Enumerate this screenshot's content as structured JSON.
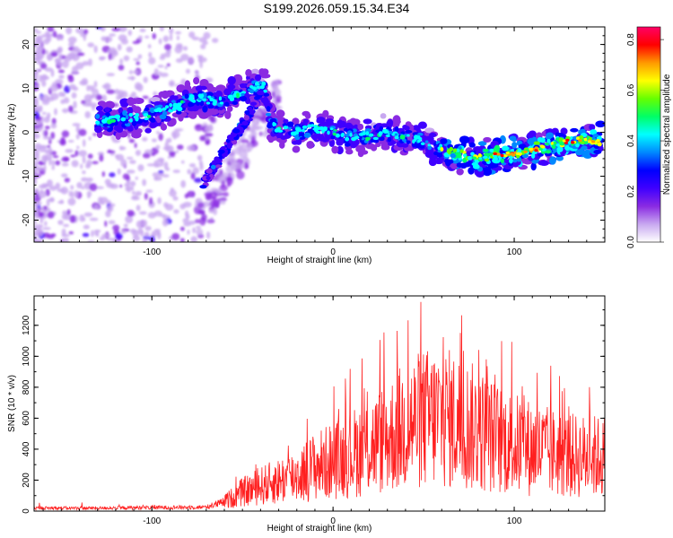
{
  "title": "S199.2026.059.15.34.E34",
  "chart_data": [
    {
      "type": "heatmap",
      "xlabel": "Height of straight line (km)",
      "ylabel": "Frequency (Hz)",
      "xlim": [
        -165,
        150
      ],
      "ylim": [
        -25,
        24
      ],
      "xticks": [
        "-100",
        "0",
        "100"
      ],
      "yticks": [
        "-20",
        "-10",
        "0",
        "10",
        "20"
      ],
      "colorbar": {
        "label": "Normalized spectral amplitude",
        "range": [
          0,
          0.85
        ],
        "ticks": [
          "0.0",
          "0.2",
          "0.4",
          "0.6",
          "0.8"
        ],
        "colors": [
          "#ffffff",
          "#c8a8f0",
          "#8a2be2",
          "#3f00ff",
          "#0000ff",
          "#0088ff",
          "#00ffff",
          "#00ff66",
          "#66ff00",
          "#ffff00",
          "#ff9900",
          "#ff0000",
          "#ff0066"
        ]
      },
      "ridge": {
        "x": [
          -130,
          -115,
          -100,
          -85,
          -75,
          -65,
          -55,
          -45,
          -38,
          -35,
          -30,
          -20,
          -10,
          0,
          10,
          20,
          30,
          40,
          50,
          60,
          70,
          80,
          90,
          100,
          110,
          120,
          130,
          140,
          148
        ],
        "y": [
          3,
          3,
          4,
          6,
          8,
          7,
          8,
          10,
          11,
          2,
          1,
          0,
          1,
          0,
          -1,
          -1,
          0,
          -1,
          -2,
          -4,
          -5,
          -6,
          -5,
          -5,
          -4,
          -3,
          -2,
          -2,
          -2
        ]
      }
    },
    {
      "type": "line",
      "xlabel": "Height of straight line (km)",
      "ylabel": "SNR (10 * v/v)",
      "xlim": [
        -165,
        150
      ],
      "ylim": [
        0,
        1390
      ],
      "xticks": [
        "-100",
        "0",
        "100"
      ],
      "yticks": [
        "0",
        "200",
        "400",
        "600",
        "800",
        "1000",
        "1200"
      ],
      "color": "#ff2020",
      "series": [
        {
          "envelope": {
            "x": [
              -165,
              -130,
              -100,
              -70,
              -60,
              -50,
              -40,
              -30,
              -20,
              -10,
              0,
              10,
              20,
              30,
              40,
              50,
              60,
              70,
              80,
              90,
              100,
              110,
              120,
              130,
              140,
              150
            ],
            "y": [
              30,
              30,
              35,
              40,
              90,
              180,
              240,
              290,
              340,
              430,
              480,
              550,
              620,
              700,
              820,
              880,
              900,
              850,
              780,
              700,
              640,
              600,
              560,
              530,
              520,
              520
            ]
          }
        }
      ]
    }
  ]
}
